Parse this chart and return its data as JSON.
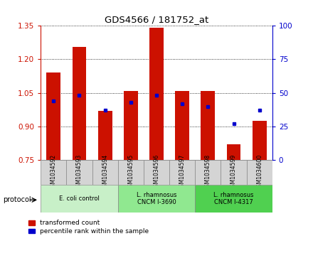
{
  "title": "GDS4566 / 181752_at",
  "samples": [
    "GSM1034592",
    "GSM1034593",
    "GSM1034594",
    "GSM1034595",
    "GSM1034596",
    "GSM1034597",
    "GSM1034598",
    "GSM1034599",
    "GSM1034600"
  ],
  "transformed_count": [
    1.14,
    1.255,
    0.97,
    1.06,
    1.34,
    1.06,
    1.06,
    0.82,
    0.925
  ],
  "percentile_rank": [
    44,
    48,
    37,
    43,
    48,
    42,
    40,
    27,
    37
  ],
  "bar_bottom": 0.75,
  "ylim_left": [
    0.75,
    1.35
  ],
  "ylim_right": [
    0,
    100
  ],
  "yticks_left": [
    0.75,
    0.9,
    1.05,
    1.2,
    1.35
  ],
  "yticks_right": [
    0,
    25,
    50,
    75,
    100
  ],
  "bar_color": "#cc1100",
  "dot_color": "#0000cc",
  "bg_plot": "#ffffff",
  "protocol_groups": [
    {
      "label": "E. coli control",
      "start": 0,
      "end": 3,
      "color": "#c8f0c8"
    },
    {
      "label": "L. rhamnosus\nCNCM I-3690",
      "start": 3,
      "end": 6,
      "color": "#90e890"
    },
    {
      "label": "L. rhamnosus\nCNCM I-4317",
      "start": 6,
      "end": 9,
      "color": "#50d050"
    }
  ],
  "legend_bar_label": "transformed count",
  "legend_dot_label": "percentile rank within the sample",
  "ylabel_left_color": "#cc1100",
  "ylabel_right_color": "#0000cc",
  "protocol_label": "protocol",
  "figsize": [
    4.4,
    3.63
  ],
  "dpi": 100
}
